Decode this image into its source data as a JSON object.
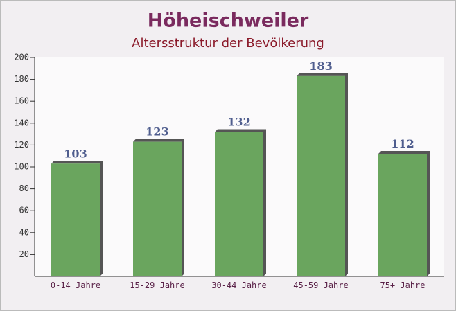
{
  "chart_data": {
    "type": "bar",
    "title": "Höheischweiler",
    "subtitle": "Altersstruktur der Bevölkerung",
    "categories": [
      "0-14 Jahre",
      "15-29 Jahre",
      "30-44 Jahre",
      "45-59 Jahre",
      "75+ Jahre"
    ],
    "values": [
      103,
      123,
      132,
      183,
      112
    ],
    "color": "#6aa55e",
    "ylim": [
      0,
      200
    ],
    "yticks": [
      20,
      40,
      60,
      80,
      100,
      120,
      140,
      160,
      180,
      200
    ]
  }
}
